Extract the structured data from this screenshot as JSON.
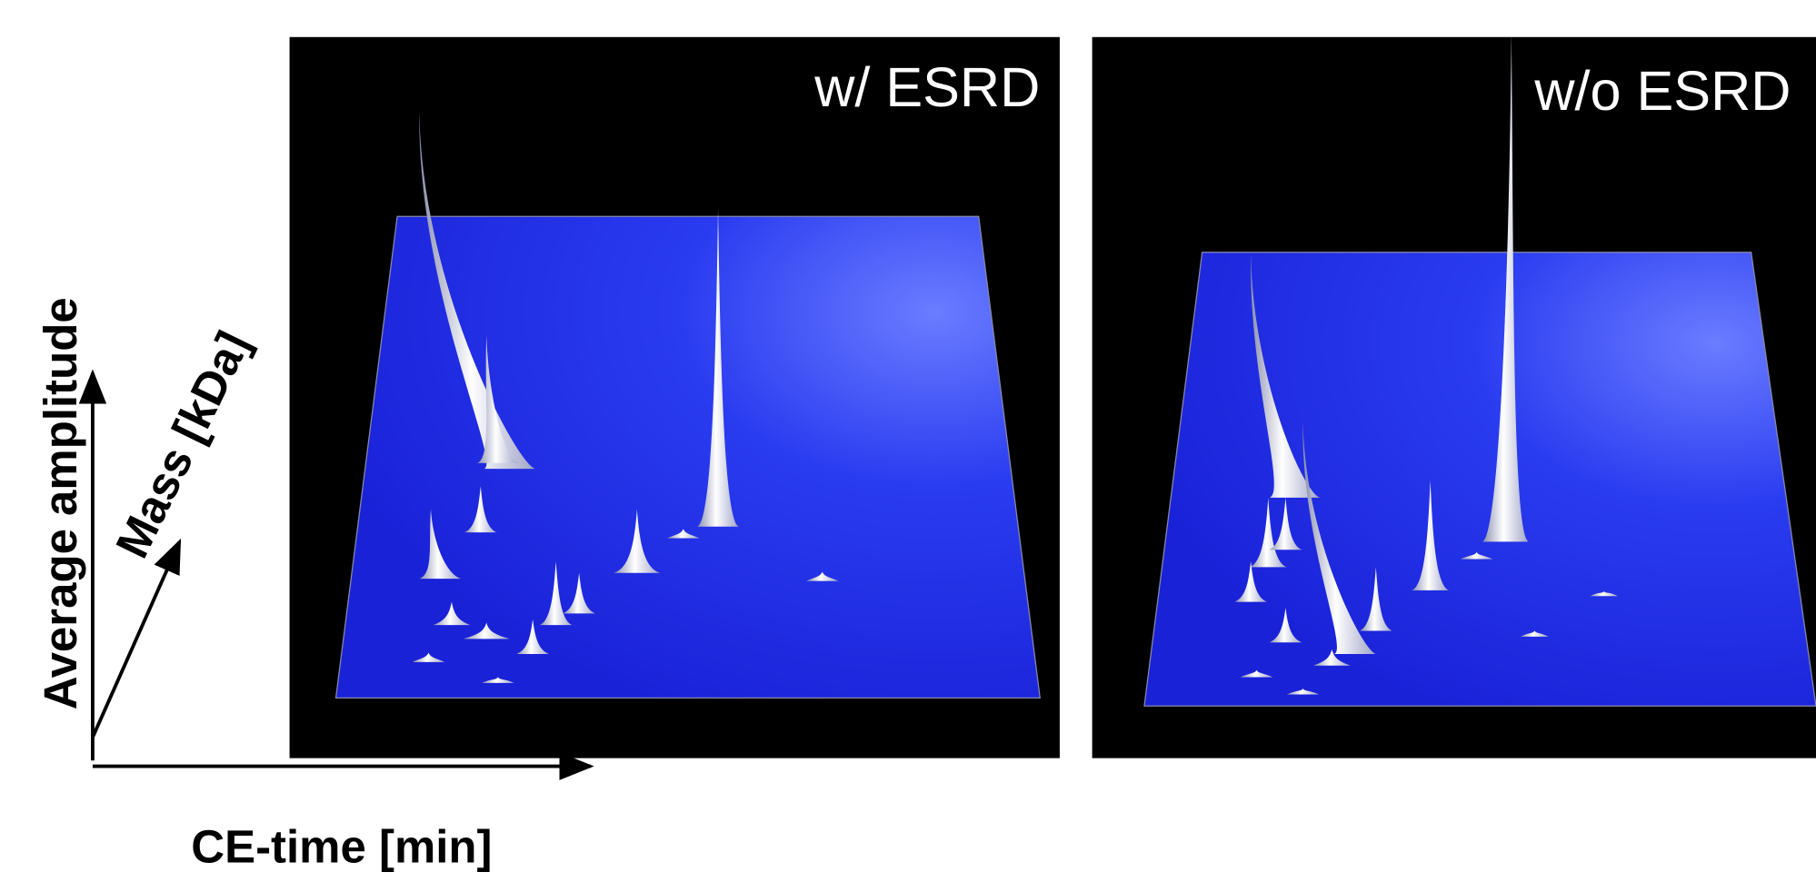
{
  "panels": [
    {
      "label": "w/ ESRD"
    },
    {
      "label": "w/o ESRD"
    }
  ],
  "axes": {
    "amplitude": "Average amplitude",
    "mass": "Mass [kDa]",
    "time": "CE-time [min]"
  }
}
